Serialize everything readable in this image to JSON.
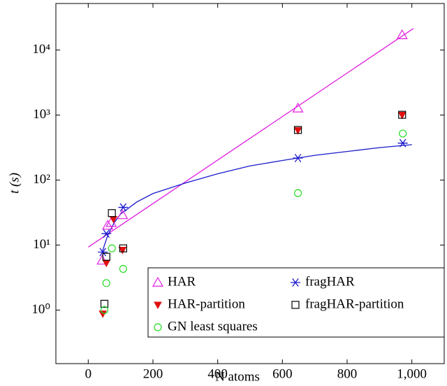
{
  "chart_data": {
    "type": "scatter",
    "xlabel": "N atoms",
    "ylabel": "t (s)",
    "xlim": [
      -100,
      1100
    ],
    "ylim": [
      0.15,
      52000
    ],
    "log_y": true,
    "grid": false,
    "xticks": [
      0,
      200,
      400,
      600,
      800,
      {
        "value": 1000,
        "label": "1,000"
      }
    ],
    "yticks": [
      {
        "value": 1,
        "label": "10⁰"
      },
      {
        "value": 10,
        "label": "10¹"
      },
      {
        "value": 100,
        "label": "10²"
      },
      {
        "value": 1000,
        "label": "10³"
      },
      {
        "value": 10000,
        "label": "10⁴"
      }
    ],
    "legend": "lower right",
    "series": [
      {
        "name": "HAR",
        "color": "#e020e0",
        "marker": "triangle",
        "x": [
          43,
          60,
          71,
          106,
          648,
          970
        ],
        "values": [
          5.8,
          20,
          22,
          29,
          1270,
          17000
        ]
      },
      {
        "name": "fragHAR",
        "color": "#1a1acc",
        "marker": "star",
        "x": [
          45,
          56,
          108,
          648,
          972
        ],
        "values": [
          7.8,
          15,
          38,
          218,
          370
        ]
      },
      {
        "name": "HAR-partition",
        "color": "#e01010",
        "marker": "triangle-down",
        "x": [
          45,
          56,
          78,
          106,
          648,
          970
        ],
        "values": [
          0.88,
          5.3,
          25,
          8.4,
          580,
          1000
        ]
      },
      {
        "name": "fragHAR-partition",
        "color": "#000000",
        "marker": "square",
        "x": [
          50,
          56,
          73,
          108,
          648,
          970
        ],
        "values": [
          1.25,
          6.6,
          31,
          8.9,
          590,
          1010
        ]
      },
      {
        "name": "GN least squares",
        "color": "#22dd22",
        "marker": "circle",
        "x": [
          50,
          56,
          73,
          108,
          648,
          972
        ],
        "values": [
          1.0,
          2.6,
          8.9,
          4.3,
          63,
          520
        ]
      }
    ],
    "lines": [
      {
        "color": "#e020e0",
        "x": [
          0,
          1005
        ],
        "values": [
          9.3,
          21500
        ]
      },
      {
        "color": "#1a1acc",
        "x": [
          43,
          60,
          80,
          100,
          150,
          200,
          300,
          400,
          500,
          600,
          700,
          800,
          900,
          1000
        ],
        "values": [
          7.8,
          14,
          22,
          30,
          46,
          62,
          90,
          125,
          165,
          200,
          240,
          275,
          315,
          350
        ]
      }
    ]
  }
}
